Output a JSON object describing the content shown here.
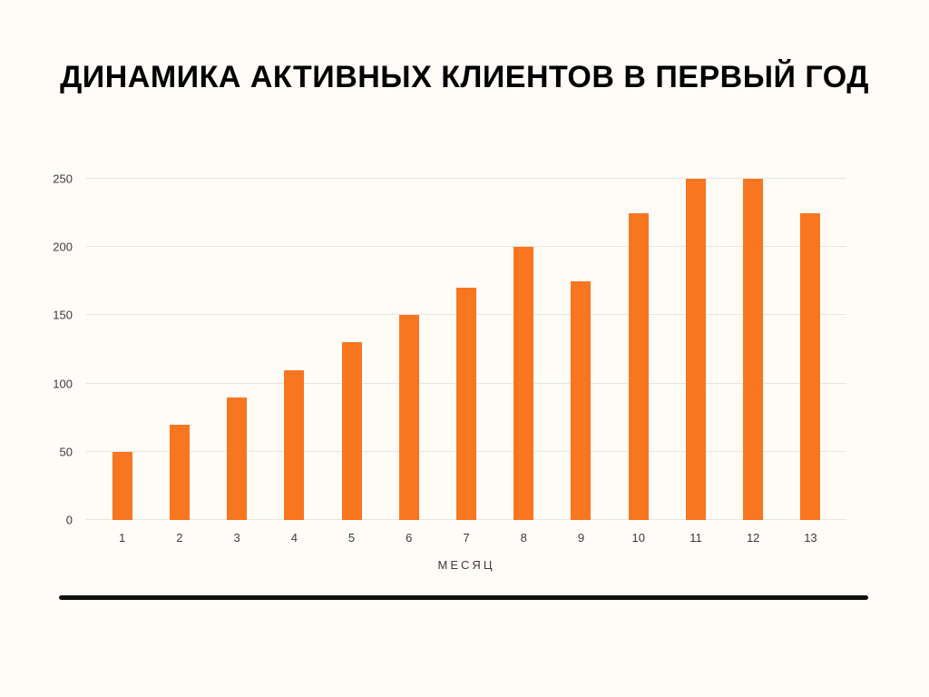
{
  "page": {
    "background": "#FFFCF8"
  },
  "chart_data": {
    "type": "bar",
    "title": "ДИНАМИКА АКТИВНЫХ КЛИЕНТОВ В ПЕРВЫЙ ГОД",
    "xlabel": "МЕСЯЦ",
    "ylabel": "",
    "categories": [
      "1",
      "2",
      "3",
      "4",
      "5",
      "6",
      "7",
      "8",
      "9",
      "10",
      "11",
      "12",
      "13"
    ],
    "values": [
      50,
      70,
      90,
      110,
      130,
      150,
      170,
      200,
      175,
      225,
      250,
      250,
      225
    ],
    "ylim": [
      0,
      250
    ],
    "yticks": [
      0,
      50,
      100,
      150,
      200,
      250
    ],
    "bar_color": "#F8761F",
    "grid": "horizontal",
    "legend": "none"
  }
}
